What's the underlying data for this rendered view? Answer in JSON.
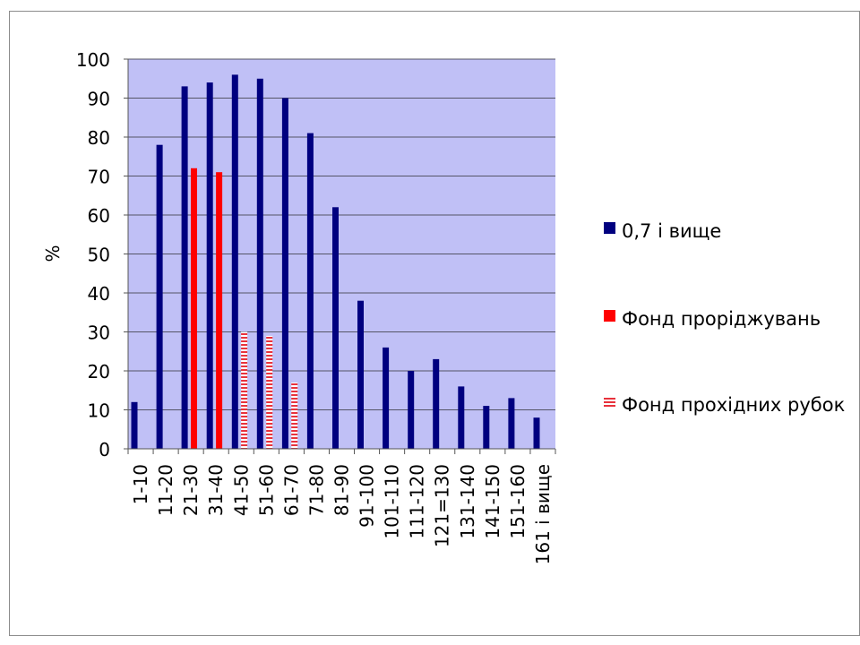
{
  "chart_data": {
    "type": "bar",
    "title": "",
    "xlabel": "",
    "ylabel": "%",
    "ylim": [
      0,
      100
    ],
    "yticks": [
      0,
      10,
      20,
      30,
      40,
      50,
      60,
      70,
      80,
      90,
      100
    ],
    "grid": true,
    "legend_position": "right",
    "plot_background": "#c0c0f6",
    "categories": [
      "1-10",
      "11-20",
      "21-30",
      "31-40",
      "41-50",
      "51-60",
      "61-70",
      "71-80",
      "81-90",
      "91-100",
      "101-110",
      "111-120",
      "121=130",
      "131-140",
      "141-150",
      "151-160",
      "161 і вище"
    ],
    "series": [
      {
        "name": "0,7 і вище",
        "color": "#00007f",
        "pattern": "solid",
        "values": [
          12,
          78,
          93,
          94,
          96,
          95,
          90,
          81,
          62,
          38,
          26,
          20,
          23,
          16,
          11,
          13,
          8
        ]
      },
      {
        "name": "Фонд проріджувань",
        "color": "#ff0000",
        "pattern": "solid",
        "values": [
          null,
          null,
          72,
          71,
          null,
          null,
          null,
          null,
          null,
          null,
          null,
          null,
          null,
          null,
          null,
          null,
          null
        ]
      },
      {
        "name": "Фонд прохідних рубок",
        "color": "#e8323c",
        "pattern": "horizontal-stripes",
        "values": [
          null,
          null,
          null,
          null,
          30,
          29,
          17,
          null,
          null,
          null,
          null,
          null,
          null,
          null,
          null,
          null,
          null
        ]
      }
    ]
  }
}
